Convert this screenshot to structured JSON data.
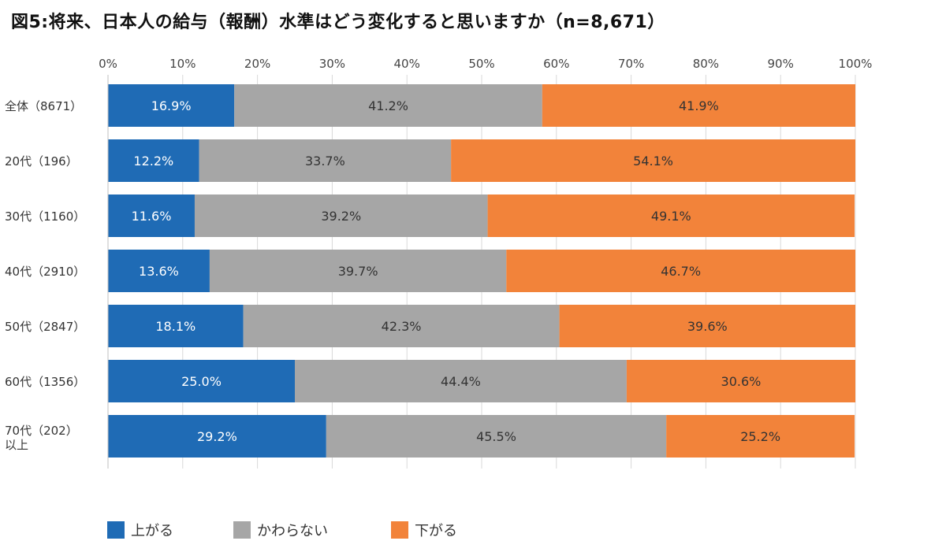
{
  "title": "図5:将来、日本人の給与（報酬）水準はどう変化すると思いますか（n=8,671）",
  "colors": {
    "up": "#1f6bb5",
    "same": "#a6a6a6",
    "down": "#f2833a",
    "grid": "#d9d9d9",
    "axis": "#bfbfbf"
  },
  "chart_data": {
    "type": "bar",
    "orientation": "horizontal",
    "stacked": true,
    "percent_stacked": true,
    "categories": [
      "全体（8671）",
      "20代（196）",
      "30代（1160）",
      "40代（2910）",
      "50代（2847）",
      "60代（1356）",
      "70代（202）以上"
    ],
    "series": [
      {
        "name": "上がる",
        "values": [
          16.9,
          12.2,
          11.6,
          13.6,
          18.1,
          25.0,
          29.2
        ]
      },
      {
        "name": "かわらない",
        "values": [
          41.2,
          33.7,
          39.2,
          39.7,
          42.3,
          44.4,
          45.5
        ]
      },
      {
        "name": "下がる",
        "values": [
          41.9,
          54.1,
          49.1,
          46.7,
          39.6,
          30.6,
          25.2
        ]
      }
    ],
    "data_labels": [
      [
        "16.9%",
        "12.2%",
        "11.6%",
        "13.6%",
        "18.1%",
        "25.0%",
        "29.2%"
      ],
      [
        "41.2%",
        "33.7%",
        "39.2%",
        "39.7%",
        "42.3%",
        "44.4%",
        "45.5%"
      ],
      [
        "41.9%",
        "54.1%",
        "49.1%",
        "46.7%",
        "39.6%",
        "30.6%",
        "25.2%"
      ]
    ],
    "xlim": [
      0,
      100
    ],
    "x_ticks": [
      "0%",
      "10%",
      "20%",
      "30%",
      "40%",
      "50%",
      "60%",
      "70%",
      "80%",
      "90%",
      "100%"
    ],
    "category_labels": [
      [
        "全体（8671）"
      ],
      [
        "20代（196）"
      ],
      [
        "30代（1160）"
      ],
      [
        "40代（2910）"
      ],
      [
        "50代（2847）"
      ],
      [
        "60代（1356）"
      ],
      [
        "70代（202）",
        "以上"
      ]
    ],
    "grid": true,
    "legend_position": "bottom-left",
    "tick_position": "top"
  }
}
